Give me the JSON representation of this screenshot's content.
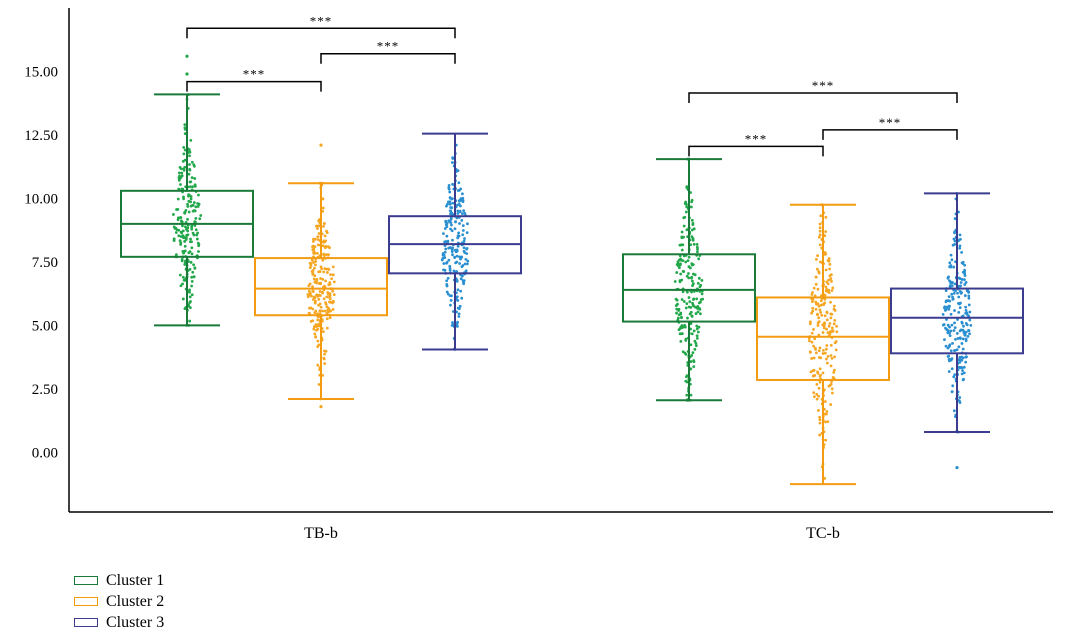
{
  "chart_data": {
    "type": "box",
    "categories": [
      "TB-b",
      "TC-b"
    ],
    "y_ticks": [
      "15.00",
      "12.50",
      "10.00",
      "7.50",
      "5.00",
      "2.50",
      "0.00"
    ],
    "y_tick_values": [
      15,
      12.5,
      10,
      7.5,
      5,
      2.5,
      0
    ],
    "ylim": [
      -2.35,
      17.5
    ],
    "grid": false,
    "legend_placement": "bottom-left",
    "series": [
      {
        "name": "Cluster 1",
        "color": "#1a7a3a",
        "point_color": "#22a84a",
        "boxes": [
          {
            "min": 5.0,
            "q1": 7.7,
            "median": 9.0,
            "q3": 10.3,
            "max": 14.1,
            "outliers": [
              14.9,
              15.6
            ]
          },
          {
            "min": 2.05,
            "q1": 5.15,
            "median": 6.4,
            "q3": 7.8,
            "max": 11.55,
            "outliers": []
          }
        ]
      },
      {
        "name": "Cluster 2",
        "color": "#f39c12",
        "point_color": "#f5a623",
        "boxes": [
          {
            "min": 2.1,
            "q1": 5.4,
            "median": 6.45,
            "q3": 7.65,
            "max": 10.6,
            "outliers": [
              1.8,
              12.1
            ]
          },
          {
            "min": -1.25,
            "q1": 2.85,
            "median": 4.55,
            "q3": 6.1,
            "max": 9.75,
            "outliers": []
          }
        ]
      },
      {
        "name": "Cluster 3",
        "color": "#3b3b8f",
        "point_color": "#2a8fd0",
        "boxes": [
          {
            "min": 4.05,
            "q1": 7.05,
            "median": 8.2,
            "q3": 9.3,
            "max": 12.55,
            "outliers": []
          },
          {
            "min": 0.8,
            "q1": 3.9,
            "median": 5.3,
            "q3": 6.45,
            "max": 10.2,
            "outliers": [
              -0.6
            ]
          }
        ]
      }
    ],
    "significance": [
      {
        "category": 0,
        "from": 0,
        "to": 2,
        "y": 16.7,
        "label": "***"
      },
      {
        "category": 0,
        "from": 1,
        "to": 2,
        "y": 15.7,
        "label": "***"
      },
      {
        "category": 0,
        "from": 0,
        "to": 1,
        "y": 14.6,
        "label": "***"
      },
      {
        "category": 1,
        "from": 0,
        "to": 2,
        "y": 14.15,
        "label": "***"
      },
      {
        "category": 1,
        "from": 1,
        "to": 2,
        "y": 12.7,
        "label": "***"
      },
      {
        "category": 1,
        "from": 0,
        "to": 1,
        "y": 12.05,
        "label": "***"
      }
    ]
  }
}
